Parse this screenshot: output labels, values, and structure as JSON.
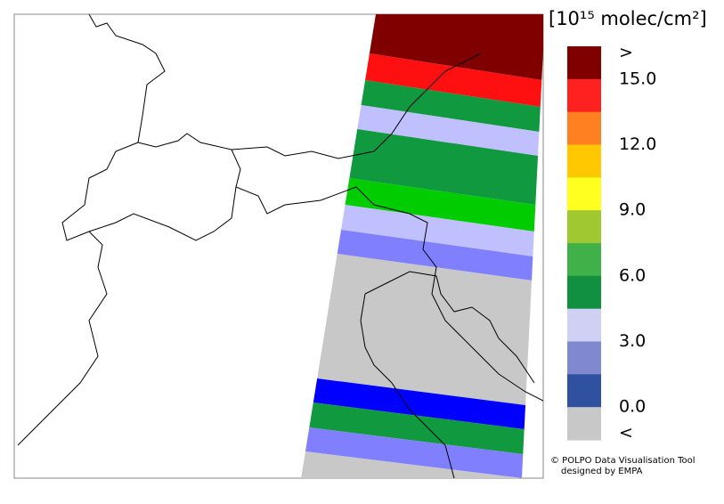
{
  "legend": {
    "title": "[10¹⁵ molec/cm²]",
    "colors": [
      "#800000",
      "#ff2020",
      "#ff8020",
      "#ffc800",
      "#ffff20",
      "#a0c830",
      "#40b048",
      "#109040",
      "#d0d0f4",
      "#8088d0",
      "#3050a0",
      "#c8c8c8"
    ],
    "labels": [
      ">",
      "15.0",
      "12.0",
      "9.0",
      "6.0",
      "3.0",
      "0.0",
      "<"
    ]
  },
  "credit": {
    "line1": "© POLPO Data Visualisation Tool",
    "line2": "designed by EMPA"
  }
}
